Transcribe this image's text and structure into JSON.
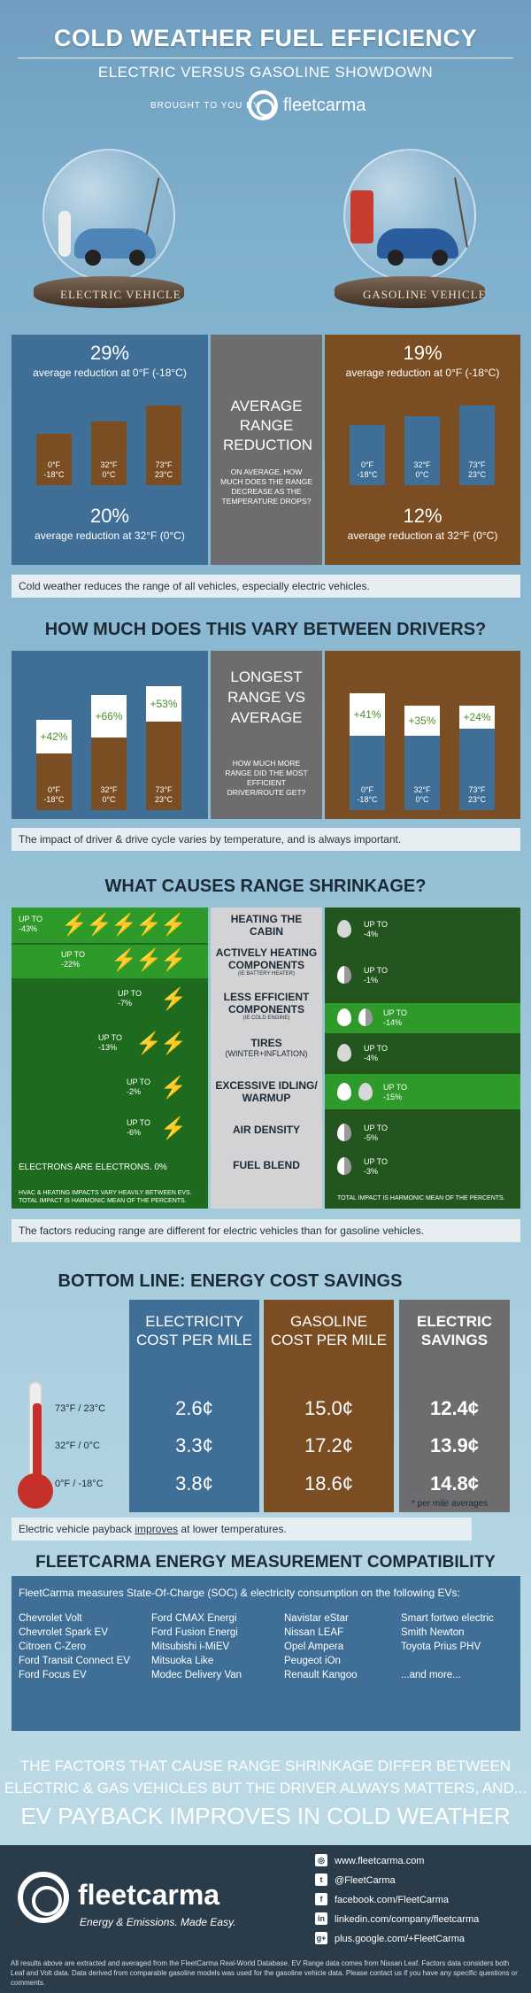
{
  "header": {
    "title": "COLD WEATHER FUEL EFFICIENCY",
    "subtitle": "ELECTRIC VERSUS GASOLINE SHOWDOWN",
    "brought_by": "BROUGHT TO YOU BY",
    "brand": "fleetcarma"
  },
  "globes": {
    "ev_label": "ELECTRIC VEHICLE",
    "gas_label": "GASOLINE VEHICLE"
  },
  "range_reduction": {
    "ev_top_pct": "29%",
    "ev_top_text": "average reduction at 0°F (-18°C)",
    "ev_bottom_pct": "20%",
    "ev_bottom_text": "average reduction at 32°F (0°C)",
    "ev_bars": [
      {
        "f": "0°F",
        "c": "-18°C"
      },
      {
        "f": "32°F",
        "c": "0°C"
      },
      {
        "f": "73°F",
        "c": "23°C"
      }
    ],
    "center_title": "AVERAGE RANGE REDUCTION",
    "center_sub": "ON AVERAGE, HOW MUCH DOES THE RANGE DECREASE AS THE TEMPERATURE DROPS?",
    "gas_top_pct": "19%",
    "gas_top_text": "average reduction at 0°F (-18°C)",
    "gas_bottom_pct": "12%",
    "gas_bottom_text": "average reduction at 32°F (0°C)",
    "gas_bars": [
      {
        "f": "0°F",
        "c": "-18°C"
      },
      {
        "f": "32°F",
        "c": "0°C"
      },
      {
        "f": "73°F",
        "c": "23°C"
      }
    ],
    "caption": "Cold weather reduces the range of all vehicles, especially electric vehicles."
  },
  "drivers": {
    "title": "HOW MUCH DOES THIS VARY BETWEEN DRIVERS?",
    "ev_bars": [
      {
        "f": "0°F",
        "c": "-18°C",
        "pct": "+42%"
      },
      {
        "f": "32°F",
        "c": "0°C",
        "pct": "+66%"
      },
      {
        "f": "73°F",
        "c": "23°C",
        "pct": "+53%"
      }
    ],
    "center_title": "LONGEST RANGE VS AVERAGE",
    "center_sub": "HOW MUCH MORE RANGE DID THE MOST EFFICIENT DRIVER/ROUTE GET?",
    "gas_bars": [
      {
        "f": "0°F",
        "c": "-18°C",
        "pct": "+41%"
      },
      {
        "f": "32°F",
        "c": "0°C",
        "pct": "+35%"
      },
      {
        "f": "73°F",
        "c": "23°C",
        "pct": "+24%"
      }
    ],
    "caption": "The impact of driver & drive cycle varies by temperature, and is always important."
  },
  "causes": {
    "title": "WHAT CAUSES RANGE SHRINKAGE?",
    "rows": [
      {
        "label": "HEATING THE CABIN",
        "sub": "",
        "ev": [
          "UP TO",
          "-43%"
        ],
        "gas": [
          "UP TO",
          "-4%"
        ]
      },
      {
        "label": "ACTIVELY HEATING COMPONENTS",
        "sub": "(IE BATTERY HEATER)",
        "ev": [
          "UP TO",
          "-22%"
        ],
        "gas": [
          "UP TO",
          "-1%"
        ]
      },
      {
        "label": "LESS EFFICIENT COMPONENTS",
        "sub": "(IE COLD ENGINE)",
        "ev": [
          "UP TO",
          "-7%"
        ],
        "gas": [
          "UP TO",
          "-14%"
        ]
      },
      {
        "label": "TIRES",
        "sub": "(WINTER+INFLATION)",
        "ev": [
          "UP TO",
          "-13%"
        ],
        "gas": [
          "UP TO",
          "-4%"
        ]
      },
      {
        "label": "EXCESSIVE IDLING/ WARMUP",
        "sub": "",
        "ev": [
          "UP TO",
          "-2%"
        ],
        "gas": [
          "UP TO",
          "-15%"
        ]
      },
      {
        "label": "AIR DENSITY",
        "sub": "",
        "ev": [
          "UP TO",
          "-6%"
        ],
        "gas": [
          "UP TO",
          "-5%"
        ]
      },
      {
        "label": "FUEL BLEND",
        "sub": "",
        "ev": [],
        "gas": [
          "UP TO",
          "-3%"
        ]
      }
    ],
    "ev_note": "ELECTRONS ARE ELECTRONS.  0%",
    "ev_footnote": "HVAC & HEATING IMPACTS VARY HEAVILY BETWEEN EVS. TOTAL IMPACT IS HARMONIC MEAN OF THE PERCENTS.",
    "gas_footnote": "TOTAL IMPACT IS HARMONIC MEAN OF THE PERCENTS.",
    "caption": "The factors reducing range are different for electric vehicles than for gasoline vehicles."
  },
  "bottom_line": {
    "title": "BOTTOM LINE: ENERGY COST SAVINGS",
    "col1": "ELECTRICITY COST PER MILE",
    "col2": "GASOLINE COST PER MILE",
    "col3": "ELECTRIC SAVINGS",
    "rows": [
      {
        "temp": "73°F / 23°C",
        "elec": "2.6¢",
        "gas": "15.0¢",
        "save": "12.4¢"
      },
      {
        "temp": "32°F / 0°C",
        "elec": "3.3¢",
        "gas": "17.2¢",
        "save": "13.9¢"
      },
      {
        "temp": "0°F / -18°C",
        "elec": "3.8¢",
        "gas": "18.6¢",
        "save": "14.8¢"
      }
    ],
    "note": "* per mile averages",
    "caption_pre": "Electric vehicle payback ",
    "caption_link": "improves",
    "caption_post": " at lower temperatures."
  },
  "compat": {
    "title": "FLEETCARMA ENERGY MEASUREMENT COMPATIBILITY",
    "intro": "FleetCarma measures State-Of-Charge (SOC) & electricity consumption on the following EVs:",
    "col1": [
      "Chevrolet Volt",
      "Chevrolet Spark EV",
      "Citroen C-Zero",
      "Ford Transit Connect EV",
      "Ford Focus EV"
    ],
    "col2": [
      "Ford CMAX Energi",
      "Ford Fusion Energi",
      "Mitsubishi i-MiEV",
      "Mitsuoka Like",
      "Modec Delivery Van"
    ],
    "col3": [
      "Navistar eStar",
      "Nissan LEAF",
      "Opel Ampera",
      "Peugeot iOn",
      "Renault Kangoo"
    ],
    "col4": [
      "Smart fortwo electric",
      "Smith Newton",
      "Toyota Prius PHV",
      "",
      "...and more..."
    ]
  },
  "closing": {
    "line1": "THE FACTORS THAT CAUSE RANGE SHRINKAGE DIFFER BETWEEN",
    "line2": "ELECTRIC & GAS VEHICLES BUT THE DRIVER ALWAYS MATTERS, AND...",
    "line3": "EV PAYBACK IMPROVES IN COLD WEATHER"
  },
  "footer": {
    "brand": "fleetcarma",
    "tagline": "Energy & Emissions. Made Easy.",
    "links": [
      "www.fleetcarma.com",
      "@FleetCarma",
      "facebook.com/FleetCarma",
      "linkedin.com/company/fleetcarma",
      "plus.google.com/+FleetCarma"
    ],
    "disclaimer": "All results above are extracted and averaged from the FleetCarma Real-World Database.  EV Range data comes from Nissan Leaf.  Factors data considers both Leaf and Volt data.  Data derived from comparable gasoline models was used for the gasoline vehicle data.  Please contact us if you have any specific questions or comments."
  }
}
